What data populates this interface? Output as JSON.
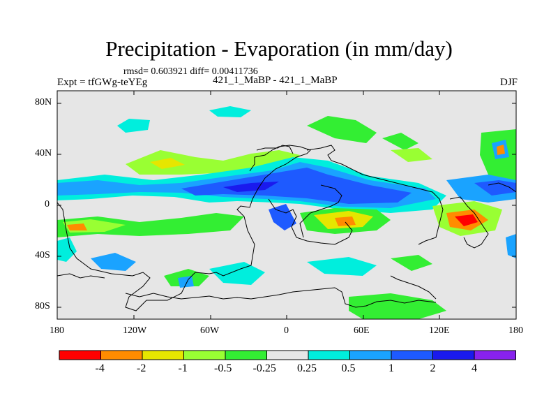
{
  "header": {
    "title": "Precipitation - Evaporation (in mm/day)",
    "stats": "rmsd= 0.603921 diff= 0.00411736",
    "experiment": "Expt = tfGWg-teYEg",
    "comparison": "421_1_MaBP - 421_1_MaBP",
    "season": "DJF"
  },
  "axes": {
    "x_ticks": [
      "180",
      "120W",
      "60W",
      "0",
      "60E",
      "120E",
      "180"
    ],
    "y_ticks": [
      "80N",
      "40N",
      "0",
      "40S",
      "80S"
    ]
  },
  "colorbar": {
    "labels": [
      "-4",
      "-2",
      "-1",
      "-0.5",
      "-0.25",
      "0.25",
      "0.5",
      "1",
      "2",
      "4"
    ],
    "colors": [
      "#ff0000",
      "#ff8c00",
      "#e6e600",
      "#99ff33",
      "#33ee33",
      "#e6e6e6",
      "#00eedd",
      "#1aa3ff",
      "#1e5aff",
      "#1a1aee",
      "#8822ee"
    ]
  },
  "colors": {
    "background_field": "#e6e6e6",
    "land_outline": "#000000"
  }
}
